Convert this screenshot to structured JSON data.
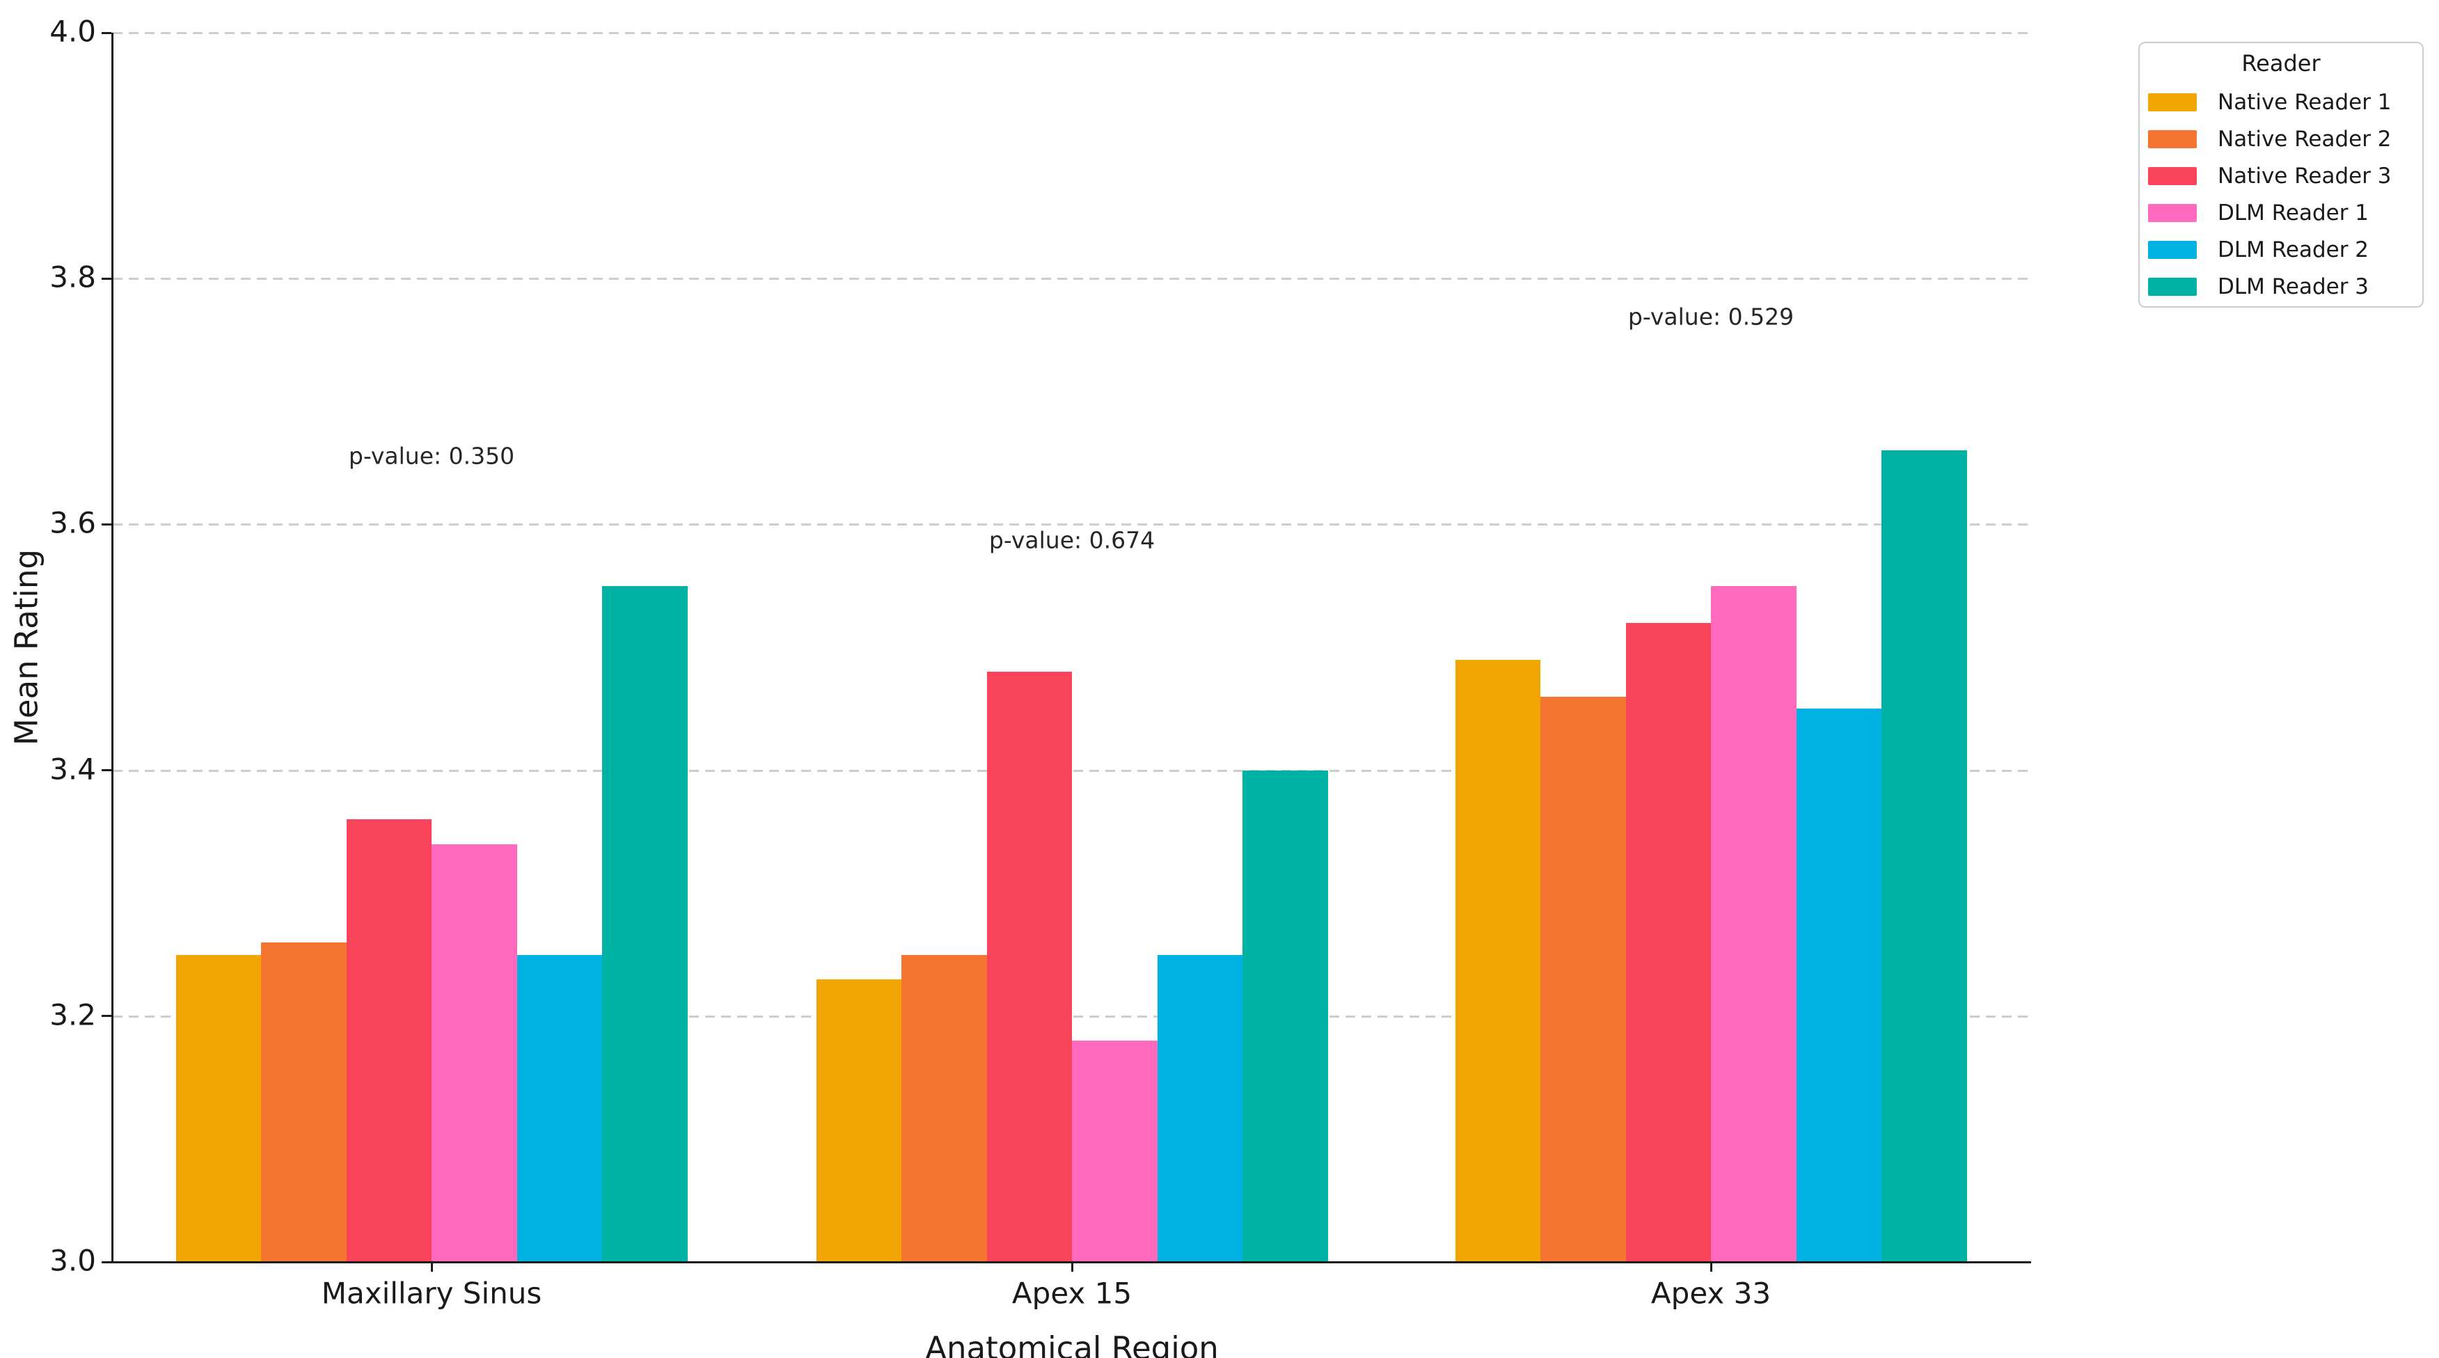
{
  "chart_data": {
    "type": "bar",
    "title": "",
    "xlabel": "Anatomical Region",
    "ylabel": "Mean Rating",
    "categories": [
      "Maxillary Sinus",
      "Apex 15",
      "Apex 33"
    ],
    "series": [
      {
        "name": "Native Reader 1",
        "color": "#F2A604",
        "values": [
          3.25,
          3.23,
          3.49
        ]
      },
      {
        "name": "Native Reader 2",
        "color": "#F47430",
        "values": [
          3.26,
          3.25,
          3.46
        ]
      },
      {
        "name": "Native Reader 3",
        "color": "#FA445C",
        "values": [
          3.36,
          3.48,
          3.52
        ]
      },
      {
        "name": "DLM Reader 1",
        "color": "#FF69BE",
        "values": [
          3.34,
          3.18,
          3.55
        ]
      },
      {
        "name": "DLM Reader 2",
        "color": "#00B1E4",
        "values": [
          3.25,
          3.25,
          3.45
        ]
      },
      {
        "name": "DLM Reader 3",
        "color": "#00B2A3",
        "values": [
          3.55,
          3.4,
          3.66
        ]
      }
    ],
    "annotations": [
      {
        "text": "p-value: 0.350",
        "category_index": 0,
        "y_value": 3.656
      },
      {
        "text": "p-value: 0.674",
        "category_index": 1,
        "y_value": 3.587
      },
      {
        "text": "p-value: 0.529",
        "category_index": 2,
        "y_value": 3.769
      }
    ],
    "ylim": [
      3.0,
      4.0
    ],
    "yticks": [
      3.0,
      3.2,
      3.4,
      3.6,
      3.8,
      4.0
    ],
    "ytick_labels": [
      "3.0",
      "3.2",
      "3.4",
      "3.6",
      "3.8",
      "4.0"
    ],
    "grid": "horizontal-dashed",
    "legend": {
      "title": "Reader",
      "location": "outside-upper-right"
    }
  },
  "colors": {
    "background": "#ffffff",
    "axis": "#1a1a1a",
    "grid": "#cdcdcd",
    "tick_text": "#1a1a1a",
    "annotation_text": "#262626",
    "legend_border": "#cccccc"
  }
}
